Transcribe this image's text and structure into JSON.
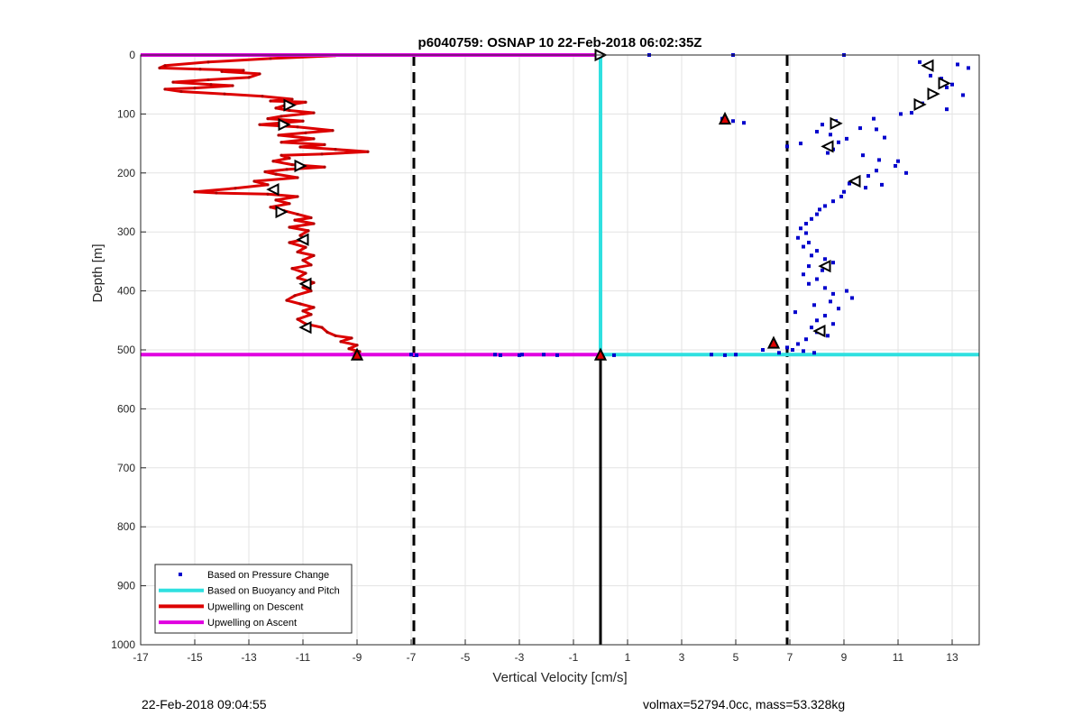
{
  "chart_data": {
    "type": "scatter",
    "title": "p6040759: OSNAP 10 22-Feb-2018 06:02:35Z",
    "xlabel": "Vertical Velocity [cm/s]",
    "ylabel": "Depth [m]",
    "xlim": [
      -17,
      14
    ],
    "ylim": [
      1000,
      0
    ],
    "y_reversed": true,
    "grid": true,
    "x_ticks": [
      -17,
      -15,
      -13,
      -11,
      -9,
      -7,
      -5,
      -3,
      -1,
      1,
      3,
      5,
      7,
      9,
      11,
      13
    ],
    "y_ticks": [
      0,
      100,
      200,
      300,
      400,
      500,
      600,
      700,
      800,
      900,
      1000
    ],
    "legend_position": "bottom-left",
    "legend": [
      {
        "label": "Based on Pressure Change",
        "style": "dot",
        "color": "#0000cc"
      },
      {
        "label": "Based on Buoyancy and Pitch",
        "style": "line",
        "color": "#2fe0e0"
      },
      {
        "label": "Upwelling on Descent",
        "style": "line",
        "color": "#dd0000"
      },
      {
        "label": "Upwelling on Ascent",
        "style": "line",
        "color": "#e000e0"
      }
    ],
    "threshold_lines_x": [
      -6.9,
      6.9
    ],
    "series": [
      {
        "name": "Based on Pressure Change",
        "kind": "points",
        "color": "#0000cc",
        "points": [
          [
            1.8,
            0
          ],
          [
            4.9,
            0
          ],
          [
            9.0,
            0
          ],
          [
            11.8,
            12
          ],
          [
            13.2,
            16
          ],
          [
            13.6,
            22
          ],
          [
            12.2,
            35
          ],
          [
            12.6,
            40
          ],
          [
            13.0,
            50
          ],
          [
            12.8,
            55
          ],
          [
            13.4,
            68
          ],
          [
            11.9,
            82
          ],
          [
            12.8,
            92
          ],
          [
            11.5,
            98
          ],
          [
            11.1,
            100
          ],
          [
            10.1,
            108
          ],
          [
            4.5,
            108
          ],
          [
            4.9,
            112
          ],
          [
            5.3,
            115
          ],
          [
            8.2,
            118
          ],
          [
            8.7,
            112
          ],
          [
            9.6,
            124
          ],
          [
            10.2,
            126
          ],
          [
            8.0,
            130
          ],
          [
            8.5,
            135
          ],
          [
            10.5,
            140
          ],
          [
            9.1,
            142
          ],
          [
            8.8,
            148
          ],
          [
            7.4,
            150
          ],
          [
            6.9,
            155
          ],
          [
            8.6,
            160
          ],
          [
            8.4,
            166
          ],
          [
            9.7,
            170
          ],
          [
            10.3,
            178
          ],
          [
            11.0,
            180
          ],
          [
            10.9,
            188
          ],
          [
            10.2,
            196
          ],
          [
            11.3,
            200
          ],
          [
            9.9,
            205
          ],
          [
            9.5,
            212
          ],
          [
            9.2,
            218
          ],
          [
            10.4,
            220
          ],
          [
            9.8,
            225
          ],
          [
            9.0,
            232
          ],
          [
            8.9,
            240
          ],
          [
            8.6,
            248
          ],
          [
            8.3,
            256
          ],
          [
            8.1,
            262
          ],
          [
            8.0,
            270
          ],
          [
            7.8,
            278
          ],
          [
            7.6,
            286
          ],
          [
            7.4,
            294
          ],
          [
            7.6,
            302
          ],
          [
            7.3,
            310
          ],
          [
            7.7,
            318
          ],
          [
            7.5,
            325
          ],
          [
            8.0,
            332
          ],
          [
            7.8,
            340
          ],
          [
            8.3,
            346
          ],
          [
            8.6,
            352
          ],
          [
            7.7,
            358
          ],
          [
            8.2,
            365
          ],
          [
            7.5,
            372
          ],
          [
            8.0,
            380
          ],
          [
            7.7,
            388
          ],
          [
            8.3,
            395
          ],
          [
            9.1,
            400
          ],
          [
            8.6,
            405
          ],
          [
            9.3,
            412
          ],
          [
            8.5,
            418
          ],
          [
            7.9,
            424
          ],
          [
            8.8,
            430
          ],
          [
            7.2,
            436
          ],
          [
            8.3,
            442
          ],
          [
            8.0,
            450
          ],
          [
            8.6,
            456
          ],
          [
            7.8,
            462
          ],
          [
            8.0,
            470
          ],
          [
            8.4,
            476
          ],
          [
            7.6,
            482
          ],
          [
            7.3,
            490
          ],
          [
            6.9,
            496
          ],
          [
            7.1,
            500
          ],
          [
            7.5,
            502
          ],
          [
            7.9,
            505
          ],
          [
            6.6,
            505
          ],
          [
            6.0,
            500
          ],
          [
            4.1,
            508
          ],
          [
            4.6,
            509
          ],
          [
            5.0,
            508
          ],
          [
            -3.9,
            508
          ],
          [
            -3.7,
            509
          ],
          [
            -3.0,
            509
          ],
          [
            -2.9,
            508
          ],
          [
            -2.1,
            508
          ],
          [
            -1.6,
            509
          ],
          [
            0.5,
            509
          ],
          [
            -7.0,
            508
          ],
          [
            -6.8,
            509
          ]
        ]
      },
      {
        "name": "Based on Buoyancy and Pitch",
        "kind": "lines",
        "color": "#2fe0e0",
        "segments": [
          [
            [
              0,
              0
            ],
            [
              0,
              508
            ]
          ],
          [
            [
              0,
              508
            ],
            [
              14,
              508
            ]
          ]
        ]
      },
      {
        "name": "Upwelling on Descent",
        "kind": "line",
        "color": "#dd0000",
        "points": [
          [
            -9.8,
            1
          ],
          [
            -12.2,
            6
          ],
          [
            -14.5,
            12
          ],
          [
            -16.1,
            18
          ],
          [
            -16.3,
            22
          ],
          [
            -14.8,
            24
          ],
          [
            -13.2,
            26
          ],
          [
            -14.0,
            28
          ],
          [
            -12.6,
            32
          ],
          [
            -13.0,
            38
          ],
          [
            -14.5,
            42
          ],
          [
            -15.8,
            46
          ],
          [
            -14.4,
            50
          ],
          [
            -13.6,
            52
          ],
          [
            -15.0,
            56
          ],
          [
            -16.1,
            58
          ],
          [
            -15.5,
            62
          ],
          [
            -13.9,
            66
          ],
          [
            -12.5,
            70
          ],
          [
            -11.4,
            75
          ],
          [
            -12.2,
            78
          ],
          [
            -10.9,
            80
          ],
          [
            -11.7,
            86
          ],
          [
            -12.0,
            90
          ],
          [
            -11.5,
            94
          ],
          [
            -10.6,
            98
          ],
          [
            -11.8,
            104
          ],
          [
            -12.3,
            108
          ],
          [
            -11.0,
            112
          ],
          [
            -12.6,
            118
          ],
          [
            -11.2,
            122
          ],
          [
            -9.9,
            128
          ],
          [
            -10.9,
            132
          ],
          [
            -11.9,
            136
          ],
          [
            -10.6,
            142
          ],
          [
            -11.8,
            148
          ],
          [
            -10.2,
            152
          ],
          [
            -11.1,
            156
          ],
          [
            -9.8,
            160
          ],
          [
            -8.6,
            164
          ],
          [
            -10.3,
            168
          ],
          [
            -11.8,
            170
          ],
          [
            -11.5,
            175
          ],
          [
            -12.1,
            180
          ],
          [
            -11.4,
            186
          ],
          [
            -10.2,
            190
          ],
          [
            -11.6,
            194
          ],
          [
            -12.4,
            198
          ],
          [
            -12.0,
            202
          ],
          [
            -11.2,
            208
          ],
          [
            -12.8,
            214
          ],
          [
            -12.3,
            220
          ],
          [
            -13.5,
            226
          ],
          [
            -15.0,
            232
          ],
          [
            -14.2,
            234
          ],
          [
            -12.3,
            236
          ],
          [
            -11.2,
            240
          ],
          [
            -12.0,
            246
          ],
          [
            -11.5,
            252
          ],
          [
            -12.2,
            258
          ],
          [
            -11.7,
            264
          ],
          [
            -11.2,
            270
          ],
          [
            -10.7,
            276
          ],
          [
            -11.3,
            280
          ],
          [
            -10.6,
            286
          ],
          [
            -11.5,
            292
          ],
          [
            -10.8,
            298
          ],
          [
            -11.1,
            306
          ],
          [
            -10.9,
            312
          ],
          [
            -11.5,
            318
          ],
          [
            -10.9,
            326
          ],
          [
            -11.2,
            334
          ],
          [
            -10.6,
            340
          ],
          [
            -11.0,
            348
          ],
          [
            -10.7,
            356
          ],
          [
            -11.4,
            362
          ],
          [
            -10.9,
            370
          ],
          [
            -11.2,
            378
          ],
          [
            -10.6,
            386
          ],
          [
            -11.0,
            394
          ],
          [
            -10.7,
            400
          ],
          [
            -11.3,
            408
          ],
          [
            -11.6,
            416
          ],
          [
            -11.1,
            422
          ],
          [
            -10.6,
            428
          ],
          [
            -11.0,
            434
          ],
          [
            -10.7,
            440
          ],
          [
            -11.2,
            448
          ],
          [
            -10.9,
            456
          ],
          [
            -10.3,
            462
          ],
          [
            -10.1,
            470
          ],
          [
            -9.8,
            476
          ],
          [
            -9.2,
            480
          ],
          [
            -9.6,
            486
          ],
          [
            -9.0,
            492
          ],
          [
            -9.3,
            498
          ],
          [
            -8.9,
            503
          ],
          [
            -9.2,
            507
          ]
        ]
      },
      {
        "name": "Upwelling on Ascent",
        "kind": "lines",
        "color": "#e000e0",
        "segments": [
          [
            [
              -17,
              0
            ],
            [
              0,
              0
            ]
          ],
          [
            [
              -17,
              508
            ],
            [
              0,
              508
            ]
          ]
        ]
      }
    ],
    "black_vertical_segment": [
      [
        0,
        508
      ],
      [
        0,
        1000
      ]
    ],
    "markers": [
      {
        "x": -11.5,
        "y": 85,
        "shape": "triangle-right"
      },
      {
        "x": -11.7,
        "y": 118,
        "shape": "triangle-right"
      },
      {
        "x": -11.1,
        "y": 188,
        "shape": "triangle-right"
      },
      {
        "x": -12.1,
        "y": 228,
        "shape": "triangle-left"
      },
      {
        "x": -11.8,
        "y": 266,
        "shape": "triangle-right"
      },
      {
        "x": -11.0,
        "y": 313,
        "shape": "triangle-left"
      },
      {
        "x": -10.9,
        "y": 388,
        "shape": "triangle-left"
      },
      {
        "x": -10.9,
        "y": 462,
        "shape": "triangle-left"
      },
      {
        "x": -9.0,
        "y": 508,
        "shape": "triangle-up"
      },
      {
        "x": 0.0,
        "y": 0,
        "shape": "triangle-right"
      },
      {
        "x": 0.0,
        "y": 508,
        "shape": "triangle-up"
      },
      {
        "x": 12.1,
        "y": 18,
        "shape": "triangle-left"
      },
      {
        "x": 12.7,
        "y": 48,
        "shape": "triangle-right"
      },
      {
        "x": 12.3,
        "y": 66,
        "shape": "triangle-right"
      },
      {
        "x": 11.8,
        "y": 84,
        "shape": "triangle-right"
      },
      {
        "x": 4.6,
        "y": 108,
        "shape": "triangle-up"
      },
      {
        "x": 8.7,
        "y": 116,
        "shape": "triangle-right"
      },
      {
        "x": 8.4,
        "y": 155,
        "shape": "triangle-left"
      },
      {
        "x": 9.4,
        "y": 214,
        "shape": "triangle-left"
      },
      {
        "x": 8.3,
        "y": 358,
        "shape": "triangle-left"
      },
      {
        "x": 8.1,
        "y": 468,
        "shape": "triangle-left"
      },
      {
        "x": 6.4,
        "y": 488,
        "shape": "triangle-up"
      }
    ]
  },
  "footer": {
    "left": "22-Feb-2018 09:04:55",
    "right": "volmax=52794.0cc, mass=53.328kg"
  }
}
